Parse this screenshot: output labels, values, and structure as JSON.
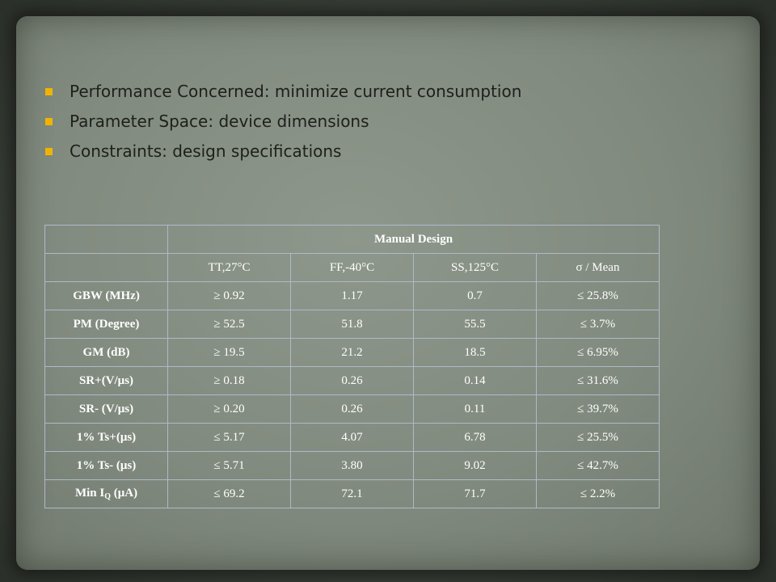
{
  "bullets": [
    "Performance Concerned: minimize current consumption",
    "Parameter Space: device dimensions",
    "Constraints: design specifications"
  ],
  "table": {
    "header_group": "Manual Design",
    "columns": [
      "TT,27°C",
      "FF,-40°C",
      "SS,125°C",
      "σ / Mean"
    ],
    "rows": [
      {
        "label": "GBW (MHz)",
        "values": [
          "≥ 0.92",
          "1.17",
          "0.7",
          "≤ 25.8%"
        ]
      },
      {
        "label": "PM (Degree)",
        "values": [
          "≥ 52.5",
          "51.8",
          "55.5",
          "≤ 3.7%"
        ]
      },
      {
        "label": "GM (dB)",
        "values": [
          "≥ 19.5",
          "21.2",
          "18.5",
          "≤ 6.95%"
        ]
      },
      {
        "label": "SR+(V/μs)",
        "values": [
          "≥ 0.18",
          "0.26",
          "0.14",
          "≤ 31.6%"
        ]
      },
      {
        "label": "SR- (V/μs)",
        "values": [
          "≥ 0.20",
          "0.26",
          "0.11",
          "≤ 39.7%"
        ]
      },
      {
        "label": "1% Ts+(μs)",
        "values": [
          "≤ 5.17",
          "4.07",
          "6.78",
          "≤ 25.5%"
        ]
      },
      {
        "label": "1% Ts- (μs)",
        "values": [
          "≤ 5.71",
          "3.80",
          "9.02",
          "≤ 42.7%"
        ]
      },
      {
        "label_main": "Min I",
        "label_sub": "Q",
        "label_tail": " (μA)",
        "values": [
          "≤ 69.2",
          "72.1",
          "71.7",
          "≤ 2.2%"
        ]
      }
    ]
  },
  "colors": {
    "bullet": "#f0b400",
    "table_border": "#aeb9cc",
    "table_text": "#ffffff",
    "paper": "#8e978b"
  }
}
